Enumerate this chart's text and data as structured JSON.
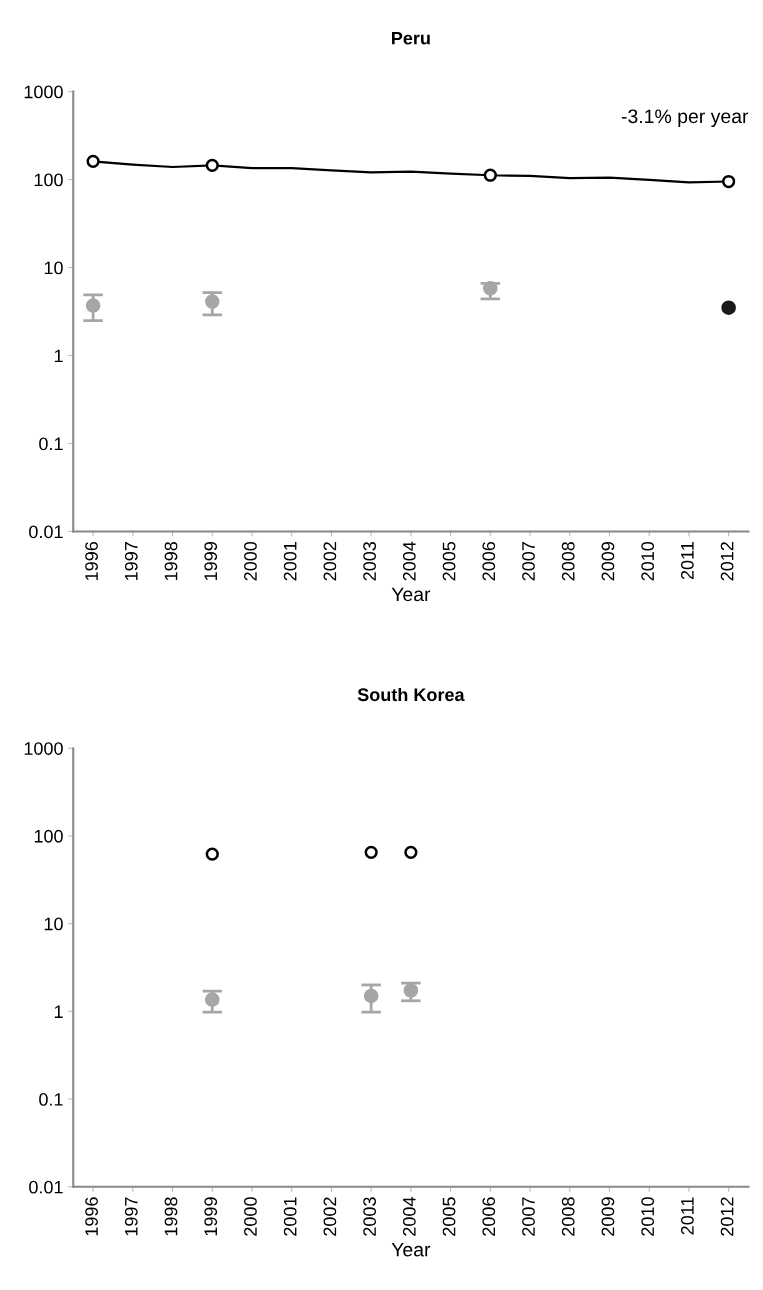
{
  "chart_data": [
    {
      "type": "line",
      "title": "Peru",
      "xlabel": "Year",
      "log": "y",
      "grid": false,
      "legend": false,
      "categories": [
        "1996",
        "1997",
        "1998",
        "1999",
        "2000",
        "2001",
        "2002",
        "2003",
        "2004",
        "2005",
        "2006",
        "2007",
        "2008",
        "2009",
        "2010",
        "2011",
        "2012"
      ],
      "ylim": [
        0.01,
        1000
      ],
      "yticks": [
        0.01,
        0.1,
        1,
        10,
        100,
        1000
      ],
      "annotations": [
        "-3.1% per year"
      ],
      "series": [
        {
          "color": "#000000",
          "marker": "none",
          "values": [
            161,
            148,
            139,
            145,
            135,
            135,
            127,
            121,
            123,
            117,
            112,
            110,
            104,
            105,
            99,
            93,
            95
          ]
        },
        {
          "type": "scatter",
          "color": "#000000",
          "marker": "circle",
          "values": [
            161,
            null,
            null,
            145,
            null,
            null,
            null,
            null,
            null,
            null,
            112,
            null,
            null,
            null,
            null,
            null,
            95
          ]
        },
        {
          "type": "scatter",
          "color": "#a6a6a6",
          "marker": "circle",
          "values": [
            3.7,
            null,
            null,
            4.1,
            null,
            null,
            null,
            null,
            null,
            null,
            5.8,
            null,
            null,
            null,
            null,
            null,
            null
          ],
          "errors": [
            [
              2.5,
              4.9
            ],
            null,
            null,
            [
              2.9,
              5.2
            ],
            null,
            null,
            null,
            null,
            null,
            null,
            [
              4.4,
              6.6
            ],
            null,
            null,
            null,
            null,
            null,
            null
          ]
        },
        {
          "type": "scatter",
          "color": "#1a1a1a",
          "marker": "circle",
          "values": [
            null,
            null,
            null,
            null,
            null,
            null,
            null,
            null,
            null,
            null,
            null,
            null,
            null,
            null,
            null,
            null,
            3.5
          ]
        }
      ]
    },
    {
      "type": "scatter",
      "title": "South Korea",
      "xlabel": "Year",
      "log": "y",
      "grid": false,
      "legend": false,
      "categories": [
        "1996",
        "1997",
        "1998",
        "1999",
        "2000",
        "2001",
        "2002",
        "2003",
        "2004",
        "2005",
        "2006",
        "2007",
        "2008",
        "2009",
        "2010",
        "2011",
        "2012"
      ],
      "ylim": [
        0.01,
        1000
      ],
      "yticks": [
        0.01,
        0.1,
        1,
        10,
        100,
        1000
      ],
      "series": [
        {
          "color": "#000000",
          "marker": "circle",
          "values": [
            null,
            null,
            null,
            62,
            null,
            null,
            null,
            65,
            65,
            null,
            null,
            null,
            null,
            null,
            null,
            null,
            null
          ]
        },
        {
          "color": "#a6a6a6",
          "marker": "circle",
          "values": [
            null,
            null,
            null,
            1.36,
            null,
            null,
            null,
            1.5,
            1.73,
            null,
            null,
            null,
            null,
            null,
            null,
            null,
            null
          ],
          "errors": [
            null,
            null,
            null,
            [
              0.98,
              1.7
            ],
            null,
            null,
            null,
            [
              0.98,
              2.0
            ],
            [
              1.32,
              2.1
            ],
            null,
            null,
            null,
            null,
            null,
            null,
            null,
            null
          ]
        }
      ]
    }
  ]
}
